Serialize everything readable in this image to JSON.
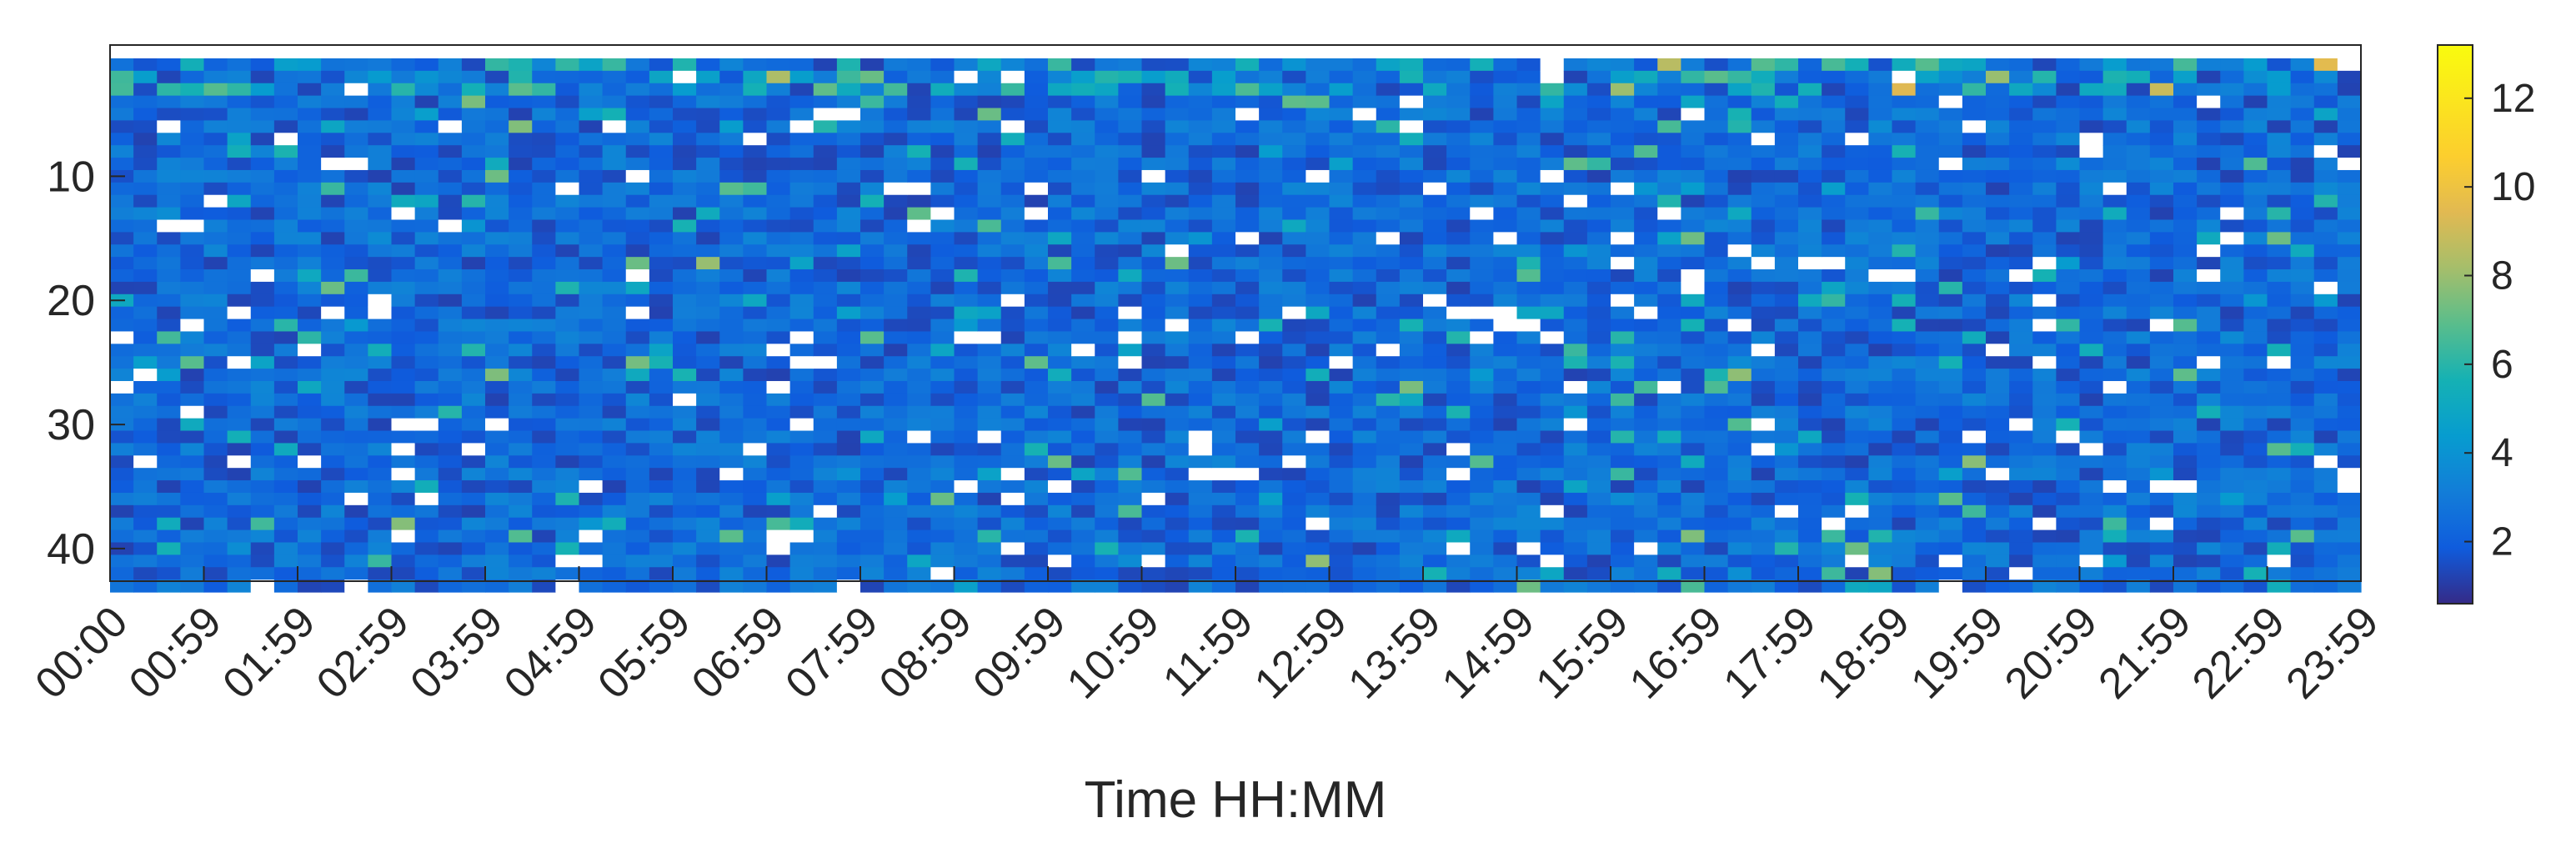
{
  "chart_data": {
    "type": "heatmap",
    "title": "",
    "xlabel": "Time HH:MM",
    "ylabel": "",
    "x_tick_labels": [
      "00:00",
      "00:59",
      "01:59",
      "02:59",
      "03:59",
      "04:59",
      "05:59",
      "06:59",
      "07:59",
      "08:59",
      "09:59",
      "10:59",
      "11:59",
      "12:59",
      "13:59",
      "14:59",
      "15:59",
      "16:59",
      "17:59",
      "18:59",
      "19:59",
      "20:59",
      "21:59",
      "22:59",
      "23:59"
    ],
    "y_ticks": [
      10,
      20,
      30,
      40
    ],
    "y_range": [
      1,
      43
    ],
    "y_direction": "reversed",
    "colorbar": {
      "colormap": "parula",
      "ticks": [
        2,
        4,
        6,
        8,
        10,
        12
      ],
      "range": [
        0.6,
        13.2
      ],
      "location": "right"
    },
    "grid": false,
    "cell_value_range_estimate": {
      "typical": [
        1,
        4
      ],
      "max": 13
    },
    "notes": []
  }
}
